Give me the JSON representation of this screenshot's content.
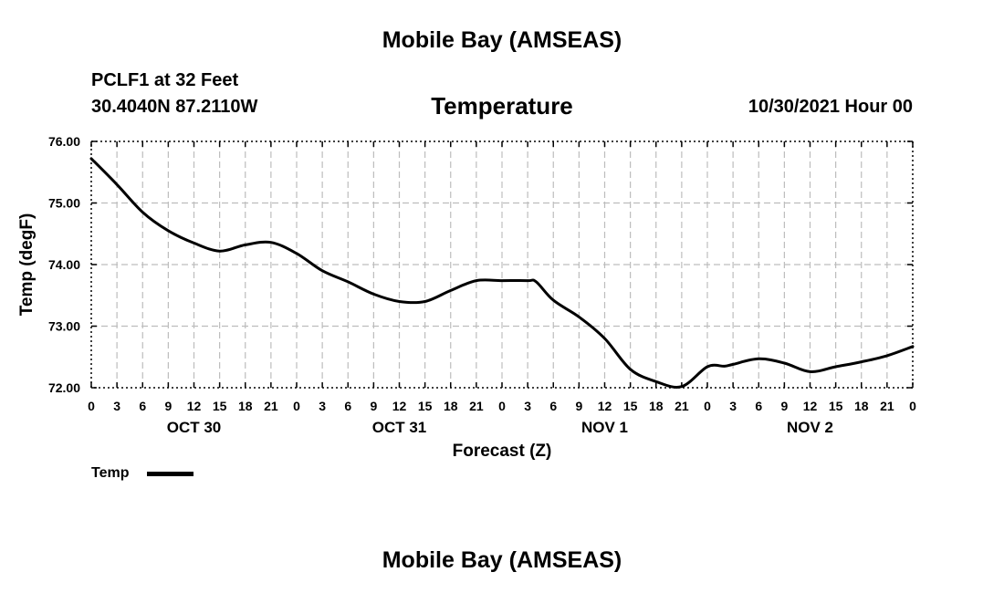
{
  "header": {
    "title": "Mobile Bay (AMSEAS)",
    "station": "PCLF1 at 32 Feet",
    "coords": "30.4040N  87.2110W",
    "variable": "Temperature",
    "run_time": "10/30/2021 Hour 00"
  },
  "footer": {
    "title": "Mobile Bay (AMSEAS)"
  },
  "chart_data": {
    "type": "line",
    "title": "Temperature",
    "xlabel": "Forecast (Z)",
    "ylabel": "Temp (degF)",
    "ylim": [
      72.0,
      76.0
    ],
    "xlim": [
      0,
      96
    ],
    "grid": true,
    "y_ticks": [
      "72.00",
      "73.00",
      "74.00",
      "75.00",
      "76.00"
    ],
    "x_tick_labels": [
      "0",
      "3",
      "6",
      "9",
      "12",
      "15",
      "18",
      "21",
      "0",
      "3",
      "6",
      "9",
      "12",
      "15",
      "18",
      "21",
      "0",
      "3",
      "6",
      "9",
      "12",
      "15",
      "18",
      "21",
      "0",
      "3",
      "6",
      "9",
      "12",
      "15",
      "18",
      "21",
      "0"
    ],
    "date_labels": [
      {
        "label": "OCT 30",
        "x": 12
      },
      {
        "label": "OCT 31",
        "x": 36
      },
      {
        "label": "NOV 1",
        "x": 60
      },
      {
        "label": "NOV 2",
        "x": 84
      }
    ],
    "legend": {
      "position": "bottom-left",
      "entries": [
        "Temp"
      ]
    },
    "series": [
      {
        "name": "Temp",
        "x": [
          0,
          3,
          6,
          9,
          12,
          15,
          18,
          21,
          24,
          27,
          30,
          33,
          36,
          39,
          42,
          45,
          48,
          51,
          52,
          54,
          57,
          60,
          63,
          66,
          69,
          72,
          74,
          75,
          78,
          81,
          84,
          87,
          90,
          93,
          96
        ],
        "y": [
          75.72,
          75.3,
          74.85,
          74.55,
          74.35,
          74.22,
          74.32,
          74.36,
          74.18,
          73.9,
          73.72,
          73.52,
          73.4,
          73.4,
          73.58,
          73.74,
          73.74,
          73.74,
          73.72,
          73.42,
          73.15,
          72.8,
          72.3,
          72.1,
          72.02,
          72.34,
          72.35,
          72.38,
          72.47,
          72.4,
          72.26,
          72.34,
          72.42,
          72.52,
          72.67
        ]
      }
    ]
  }
}
